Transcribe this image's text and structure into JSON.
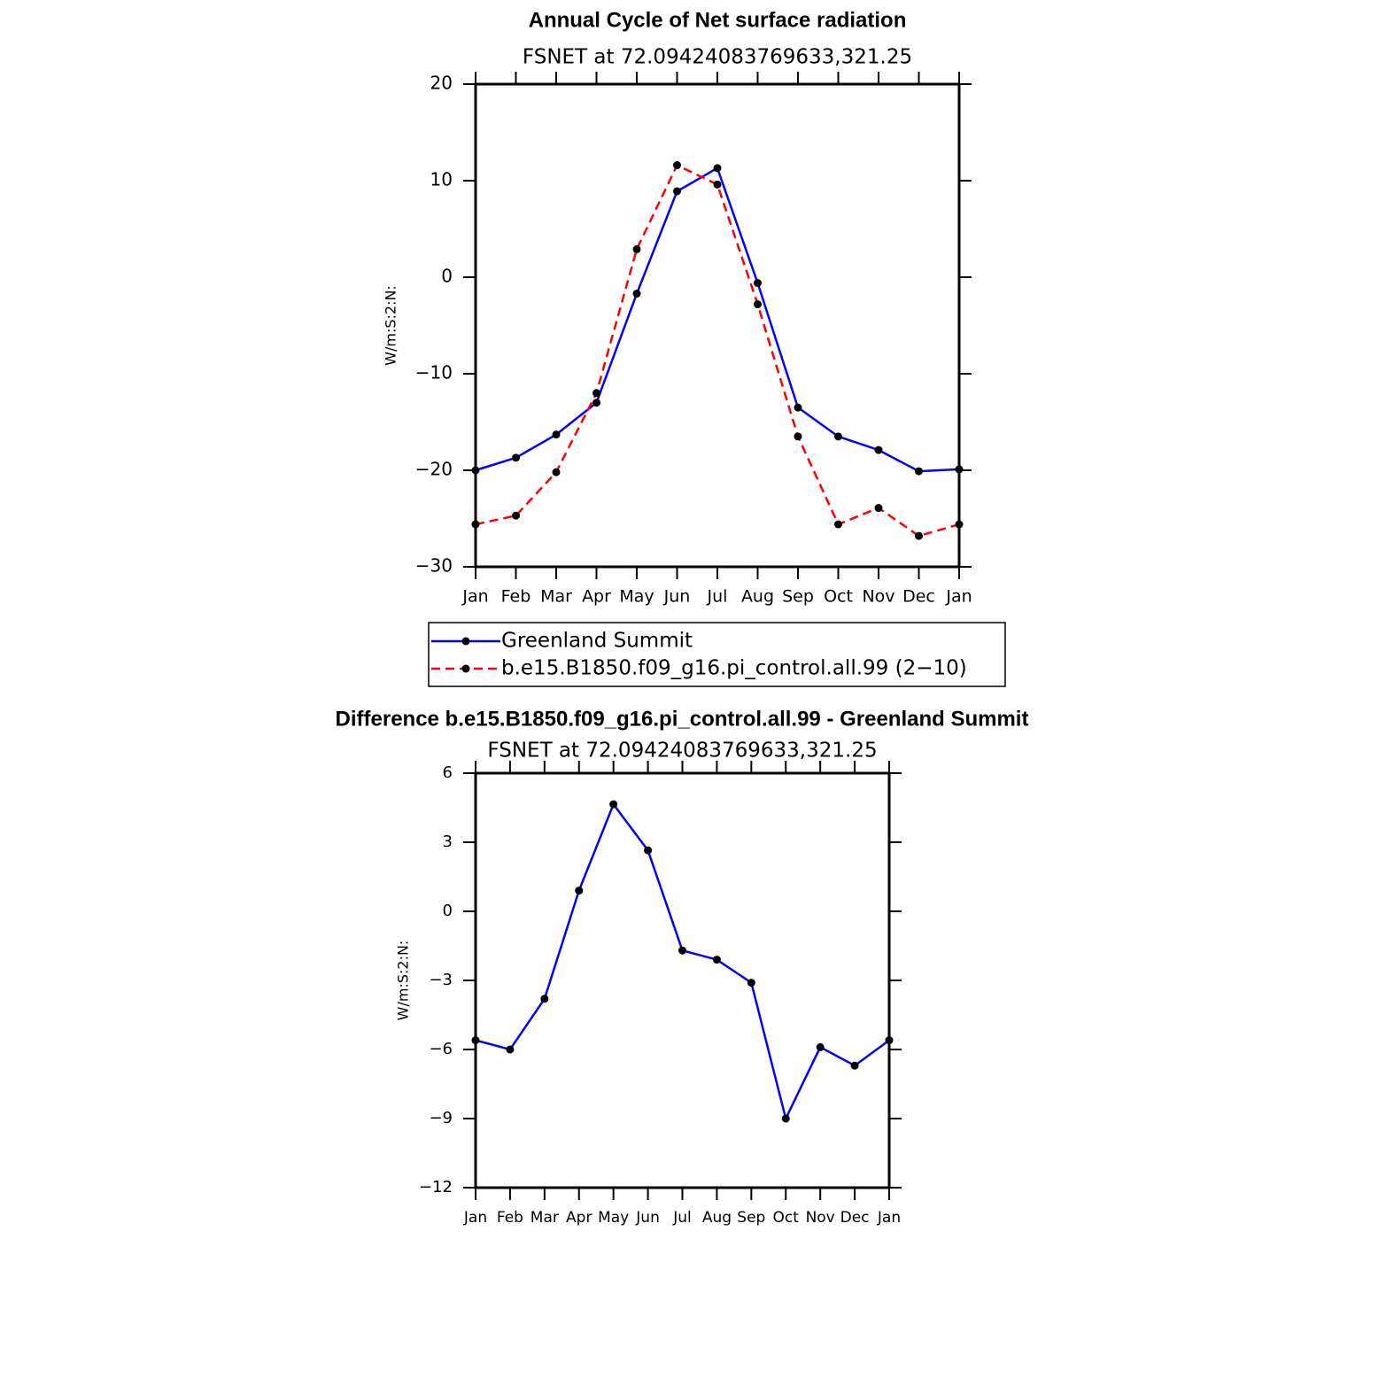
{
  "chart_data": [
    {
      "type": "line",
      "title": "Annual Cycle of Net surface radiation",
      "subtitle": "FSNET at 72.09424083769633,321.25",
      "ylabel": "W/m:S:2:N:",
      "categories": [
        "Jan",
        "Feb",
        "Mar",
        "Apr",
        "May",
        "Jun",
        "Jul",
        "Aug",
        "Sep",
        "Oct",
        "Nov",
        "Dec",
        "Jan"
      ],
      "series": [
        {
          "name": "Greenland Summit",
          "color": "#0000ff",
          "line_style": "solid",
          "values": [
            -20.0,
            -18.7,
            -16.3,
            -13.0,
            -1.7,
            8.9,
            11.3,
            -0.6,
            -13.5,
            -16.5,
            -17.9,
            -20.1,
            -19.9
          ]
        },
        {
          "name": "b.e15.B1850.f09_g16.pi_control.all.99 (2−10)",
          "color": "#ff0000",
          "line_style": "dashed",
          "values": [
            -25.6,
            -24.7,
            -20.2,
            -12.0,
            2.9,
            11.6,
            9.6,
            -2.8,
            -16.5,
            -25.6,
            -23.9,
            -26.8,
            -25.6
          ]
        }
      ],
      "ylim": [
        -30,
        20
      ],
      "yticks": [
        {
          "value": -30,
          "label": "−30"
        },
        {
          "value": -20,
          "label": "−20"
        },
        {
          "value": -10,
          "label": "−10"
        },
        0,
        10,
        20
      ],
      "legend": "below"
    },
    {
      "type": "line",
      "title": "Difference b.e15.B1850.f09_g16.pi_control.all.99 - Greenland Summit",
      "subtitle": "FSNET at 72.09424083769633,321.25",
      "ylabel": "W/m:S:2:N:",
      "categories": [
        "Jan",
        "Feb",
        "Mar",
        "Apr",
        "May",
        "Jun",
        "Jul",
        "Aug",
        "Sep",
        "Oct",
        "Nov",
        "Dec",
        "Jan"
      ],
      "series": [
        {
          "color": "#0000ff",
          "line_style": "solid",
          "values": [
            -5.6,
            -6.0,
            -3.8,
            0.9,
            4.65,
            2.65,
            -1.7,
            -2.1,
            -3.1,
            -9.0,
            -5.9,
            -6.7,
            -5.6
          ]
        }
      ],
      "ylim": [
        -12,
        6
      ],
      "yticks": [
        {
          "value": -12,
          "label": "−12"
        },
        {
          "value": -9,
          "label": "−9"
        },
        {
          "value": -6,
          "label": "−6"
        },
        {
          "value": -3,
          "label": "−3"
        },
        0,
        3,
        6
      ]
    }
  ]
}
